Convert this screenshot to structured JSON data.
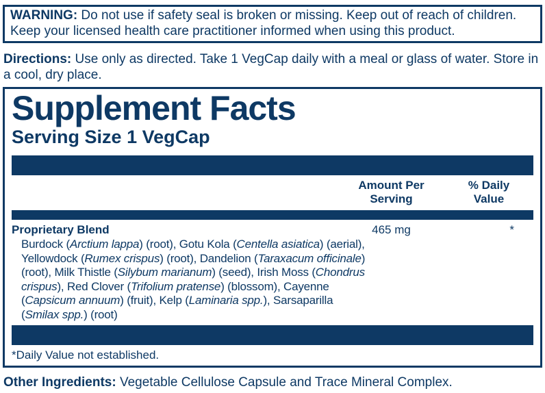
{
  "colors": {
    "navy": "#0e3964"
  },
  "warning": {
    "label": "WARNING:",
    "text": " Do not use if safety seal is broken or missing. Keep out of reach of children. Keep your licensed health care practitioner informed when using this product."
  },
  "directions": {
    "label": "Directions:",
    "text": " Use only as directed. Take 1 VegCap daily with a meal or glass of water. Store in a cool, dry place."
  },
  "panel": {
    "title": "Supplement Facts",
    "serving_size": "Serving Size 1 VegCap",
    "columns": {
      "amount_header": "Amount Per\nServing",
      "daily_value_header": "% Daily\nValue"
    },
    "blend": {
      "name": "Proprietary Blend",
      "amount": "465 mg",
      "daily_value": "*",
      "ingredients": [
        {
          "text": "Burdock (",
          "italic": false
        },
        {
          "text": "Arctium lappa",
          "italic": true
        },
        {
          "text": ") (root), Gotu Kola (",
          "italic": false
        },
        {
          "text": "Centella asiatica",
          "italic": true
        },
        {
          "text": ") (aerial), Yellowdock (",
          "italic": false
        },
        {
          "text": "Rumex crispus",
          "italic": true
        },
        {
          "text": ") (root), Dandelion (",
          "italic": false
        },
        {
          "text": "Taraxacum officinale",
          "italic": true
        },
        {
          "text": ") (root), Milk Thistle (",
          "italic": false
        },
        {
          "text": "Silybum marianum",
          "italic": true
        },
        {
          "text": ") (seed), Irish Moss (",
          "italic": false
        },
        {
          "text": "Chondrus crispus",
          "italic": true
        },
        {
          "text": "), Red Clover (",
          "italic": false
        },
        {
          "text": "Trifolium pratense",
          "italic": true
        },
        {
          "text": ") (blossom), Cayenne (",
          "italic": false
        },
        {
          "text": "Capsicum annuum",
          "italic": true
        },
        {
          "text": ") (fruit), Kelp (",
          "italic": false
        },
        {
          "text": "Laminaria spp.",
          "italic": true
        },
        {
          "text": "), Sarsaparilla (",
          "italic": false
        },
        {
          "text": "Smilax spp.",
          "italic": true
        },
        {
          "text": ") (root)",
          "italic": false
        }
      ]
    },
    "footnote": "*Daily Value not established."
  },
  "other_ingredients": {
    "label": "Other Ingredients:",
    "text": " Vegetable Cellulose Capsule and Trace Mineral Complex."
  }
}
